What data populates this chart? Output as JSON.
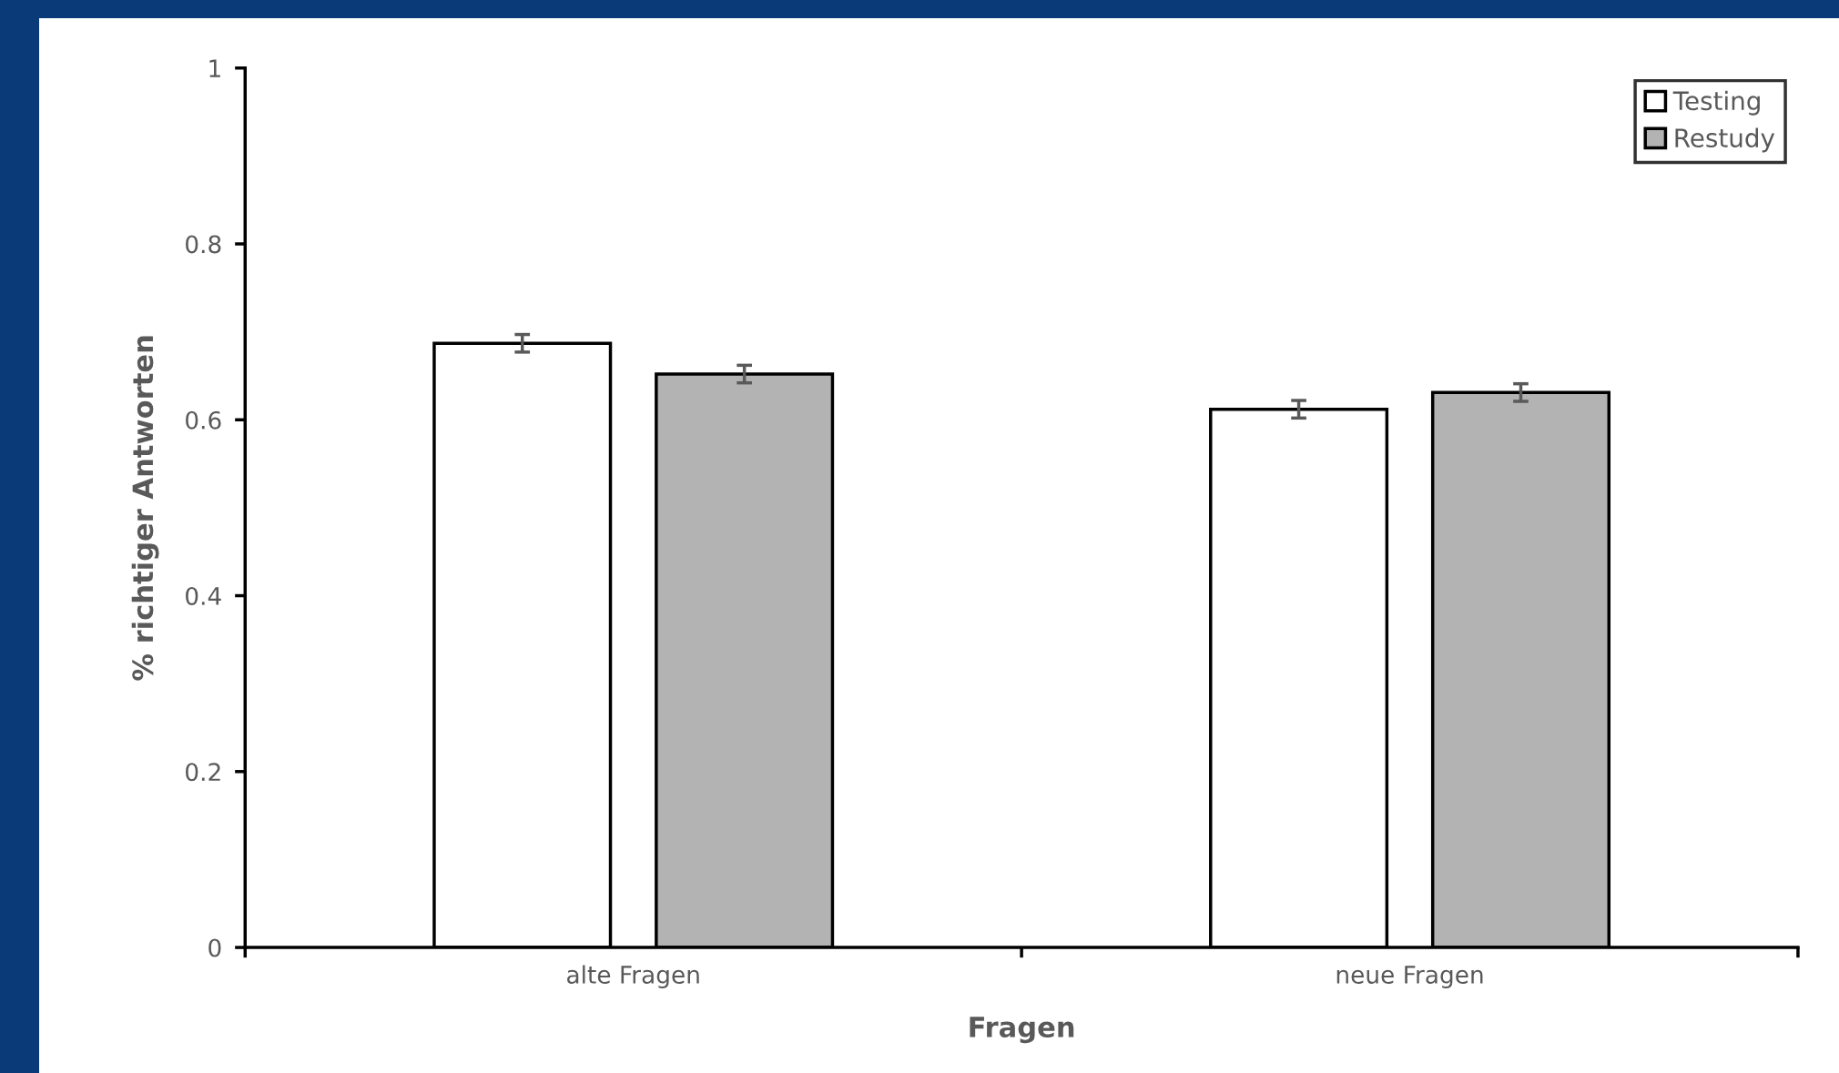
{
  "chart_data": {
    "type": "bar",
    "xlabel": "Fragen",
    "ylabel": "% richtiger Antworten",
    "categories": [
      "alte Fragen",
      "neue Fragen"
    ],
    "series": [
      {
        "name": "Testing",
        "color": "#ffffff",
        "values": [
          0.687,
          0.612
        ],
        "errors": [
          0.01,
          0.01
        ]
      },
      {
        "name": "Restudy",
        "color": "#b3b3b3",
        "values": [
          0.652,
          0.631
        ],
        "errors": [
          0.01,
          0.01
        ]
      }
    ],
    "ylim": [
      0,
      1
    ],
    "yticks": [
      0,
      0.2,
      0.4,
      0.6,
      0.8,
      1
    ],
    "grid": false,
    "legend": "top right"
  }
}
